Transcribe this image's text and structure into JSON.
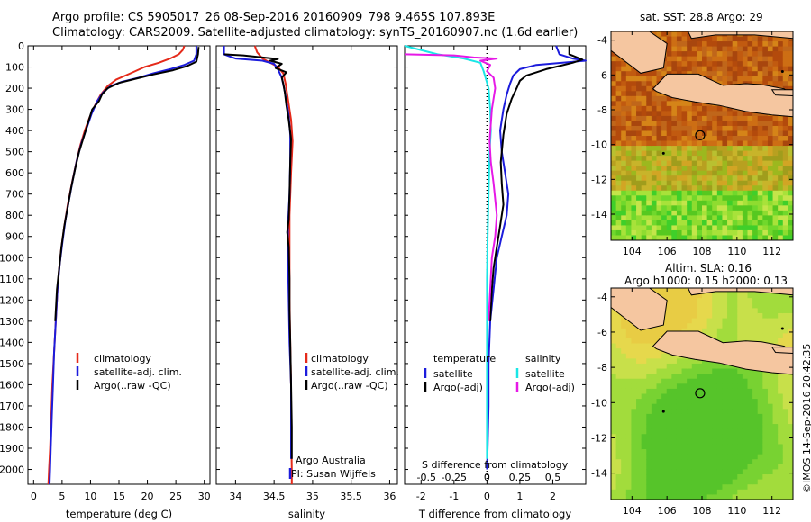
{
  "title": {
    "line1": "Argo profile: CS 5905017_26 08-Sep-2016 20160909_798 9.465S 107.893E",
    "line2": "Climatology: CARS2009. Satellite-adjusted climatology: synTS_20160907.nc (1.6d earlier)"
  },
  "colors": {
    "climatology": "#e52a1a",
    "satellite": "#1c1cdc",
    "argo": "#000000",
    "cyan": "#19e6e6",
    "magenta": "#e619e6",
    "land": "#f5c6a0",
    "frame": "#000000"
  },
  "chart_data": [
    {
      "id": "temperature",
      "type": "line",
      "xlabel": "temperature (deg C)",
      "ylabel": "",
      "xlim": [
        -1,
        31
      ],
      "ylim": [
        2070,
        0
      ],
      "xticks": [
        0,
        5,
        10,
        15,
        20,
        25,
        30
      ],
      "yticks": [
        0,
        100,
        200,
        300,
        400,
        500,
        600,
        700,
        800,
        900,
        1000,
        1100,
        1200,
        1300,
        1400,
        1500,
        1600,
        1700,
        1800,
        1900,
        2000
      ],
      "legend": [
        "climatology",
        "satellite-adj. clim.",
        "Argo(..raw -QC)"
      ],
      "series": [
        {
          "name": "climatology",
          "color": "#e52a1a",
          "points": [
            [
              26.5,
              0
            ],
            [
              26.2,
              20
            ],
            [
              25.5,
              40
            ],
            [
              24.0,
              60
            ],
            [
              22.0,
              80
            ],
            [
              19.5,
              100
            ],
            [
              17.0,
              130
            ],
            [
              14.5,
              160
            ],
            [
              13.0,
              190
            ],
            [
              11.8,
              230
            ],
            [
              10.8,
              280
            ],
            [
              9.8,
              340
            ],
            [
              9.0,
              400
            ],
            [
              8.2,
              470
            ],
            [
              7.5,
              550
            ],
            [
              6.8,
              640
            ],
            [
              6.0,
              750
            ],
            [
              5.4,
              850
            ],
            [
              4.9,
              950
            ],
            [
              4.5,
              1050
            ],
            [
              4.2,
              1150
            ],
            [
              3.9,
              1300
            ],
            [
              3.6,
              1450
            ],
            [
              3.3,
              1600
            ],
            [
              3.1,
              1750
            ],
            [
              2.9,
              1900
            ],
            [
              2.7,
              2000
            ],
            [
              2.6,
              2070
            ]
          ]
        },
        {
          "name": "satellite-adj. clim.",
          "color": "#1c1cdc",
          "points": [
            [
              28.6,
              0
            ],
            [
              28.6,
              40
            ],
            [
              28.2,
              70
            ],
            [
              26.5,
              90
            ],
            [
              24.0,
              110
            ],
            [
              21.0,
              130
            ],
            [
              18.5,
              150
            ],
            [
              15.5,
              170
            ],
            [
              13.5,
              190
            ],
            [
              12.2,
              220
            ],
            [
              11.2,
              260
            ],
            [
              10.2,
              320
            ],
            [
              9.3,
              390
            ],
            [
              8.4,
              460
            ],
            [
              7.6,
              540
            ],
            [
              6.9,
              630
            ],
            [
              6.2,
              730
            ],
            [
              5.6,
              820
            ],
            [
              5.1,
              920
            ],
            [
              4.6,
              1030
            ],
            [
              4.2,
              1150
            ],
            [
              3.9,
              1300
            ],
            [
              3.6,
              1450
            ],
            [
              3.4,
              1600
            ],
            [
              3.2,
              1750
            ],
            [
              3.0,
              1900
            ],
            [
              2.9,
              2000
            ],
            [
              2.8,
              2070
            ]
          ]
        },
        {
          "name": "Argo(..raw -QC)",
          "color": "#000000",
          "points": [
            [
              29.0,
              5
            ],
            [
              28.9,
              40
            ],
            [
              28.6,
              75
            ],
            [
              27.0,
              95
            ],
            [
              24.5,
              115
            ],
            [
              21.0,
              135
            ],
            [
              18.0,
              155
            ],
            [
              15.0,
              175
            ],
            [
              13.0,
              200
            ],
            [
              12.0,
              230
            ],
            [
              11.5,
              260
            ],
            [
              10.3,
              300
            ],
            [
              9.6,
              360
            ],
            [
              8.8,
              430
            ],
            [
              8.0,
              500
            ],
            [
              7.3,
              580
            ],
            [
              6.6,
              670
            ],
            [
              6.0,
              760
            ],
            [
              5.4,
              850
            ],
            [
              4.9,
              950
            ],
            [
              4.5,
              1050
            ],
            [
              4.1,
              1150
            ],
            [
              3.8,
              1300
            ]
          ]
        }
      ]
    },
    {
      "id": "salinity",
      "type": "line",
      "xlabel": "salinity",
      "ylabel": "",
      "xlim": [
        33.75,
        36.1
      ],
      "ylim": [
        2070,
        0
      ],
      "xticks": [
        34,
        34.5,
        35,
        35.5,
        36
      ],
      "xticklabels": [
        "34",
        "34.5",
        "35",
        "35.5",
        "36"
      ],
      "legend": [
        "climatology",
        "satellite-adj. clim.",
        "Argo(..raw -QC)"
      ],
      "series": [
        {
          "name": "climatology",
          "color": "#e52a1a",
          "points": [
            [
              34.25,
              0
            ],
            [
              34.28,
              30
            ],
            [
              34.35,
              60
            ],
            [
              34.45,
              80
            ],
            [
              34.55,
              100
            ],
            [
              34.62,
              130
            ],
            [
              34.65,
              180
            ],
            [
              34.68,
              250
            ],
            [
              34.72,
              350
            ],
            [
              34.74,
              450
            ],
            [
              34.72,
              600
            ],
            [
              34.7,
              800
            ],
            [
              34.7,
              1000
            ],
            [
              34.7,
              1200
            ],
            [
              34.71,
              1400
            ],
            [
              34.72,
              1600
            ],
            [
              34.72,
              1800
            ],
            [
              34.73,
              2000
            ],
            [
              34.73,
              2070
            ]
          ]
        },
        {
          "name": "satellite-adj. clim.",
          "color": "#1c1cdc",
          "points": [
            [
              33.85,
              0
            ],
            [
              33.85,
              40
            ],
            [
              34.0,
              60
            ],
            [
              34.35,
              70
            ],
            [
              34.5,
              85
            ],
            [
              34.55,
              110
            ],
            [
              34.6,
              150
            ],
            [
              34.63,
              200
            ],
            [
              34.66,
              260
            ],
            [
              34.69,
              330
            ],
            [
              34.71,
              420
            ],
            [
              34.71,
              550
            ],
            [
              34.7,
              700
            ],
            [
              34.68,
              850
            ],
            [
              34.68,
              1000
            ],
            [
              34.69,
              1200
            ],
            [
              34.7,
              1400
            ],
            [
              34.72,
              1600
            ],
            [
              34.72,
              1800
            ],
            [
              34.72,
              1950
            ]
          ]
        },
        {
          "name": "Argo(..raw -QC)",
          "color": "#000000",
          "points": [
            [
              33.85,
              40
            ],
            [
              34.1,
              45
            ],
            [
              34.35,
              55
            ],
            [
              34.55,
              62
            ],
            [
              34.45,
              70
            ],
            [
              34.6,
              85
            ],
            [
              34.52,
              105
            ],
            [
              34.66,
              125
            ],
            [
              34.6,
              150
            ],
            [
              34.62,
              180
            ],
            [
              34.64,
              220
            ],
            [
              34.66,
              280
            ],
            [
              34.69,
              350
            ],
            [
              34.72,
              440
            ],
            [
              34.71,
              550
            ],
            [
              34.7,
              700
            ],
            [
              34.69,
              820
            ],
            [
              34.67,
              880
            ],
            [
              34.69,
              950
            ],
            [
              34.7,
              1100
            ],
            [
              34.7,
              1250
            ],
            [
              34.71,
              1400
            ],
            [
              34.72,
              1600
            ],
            [
              34.73,
              1800
            ],
            [
              34.73,
              1950
            ]
          ]
        }
      ],
      "annotations": [
        "Argo Australia",
        "PI: Susan Wijffels"
      ]
    },
    {
      "id": "difference",
      "type": "line",
      "xlabel": "T difference from climatology",
      "xlabel_top": "S difference from climatology",
      "xlim": [
        -2.5,
        3.0
      ],
      "ylim": [
        2070,
        0
      ],
      "xticks": [
        -2,
        -1,
        0,
        1,
        2
      ],
      "xticks_top": [
        "-0.5",
        "-0.25",
        "0",
        "0.25",
        "0.5"
      ],
      "legend_left_title": "temperature",
      "legend_right_title": "salinity",
      "legend": [
        "satellite",
        "Argo(-adj)",
        "satellite",
        "Argo(-adj)"
      ],
      "series": [
        {
          "name": "T satellite",
          "color": "#1c1cdc",
          "points": [
            [
              2.1,
              0
            ],
            [
              2.2,
              40
            ],
            [
              2.6,
              60
            ],
            [
              3.0,
              70
            ],
            [
              1.5,
              90
            ],
            [
              1.0,
              110
            ],
            [
              0.8,
              140
            ],
            [
              0.7,
              180
            ],
            [
              0.6,
              230
            ],
            [
              0.5,
              300
            ],
            [
              0.4,
              400
            ],
            [
              0.45,
              500
            ],
            [
              0.55,
              600
            ],
            [
              0.65,
              700
            ],
            [
              0.6,
              800
            ],
            [
              0.45,
              900
            ],
            [
              0.3,
              1000
            ],
            [
              0.2,
              1150
            ],
            [
              0.1,
              1300
            ],
            [
              0.05,
              1500
            ],
            [
              0.05,
              1700
            ],
            [
              0.02,
              1900
            ],
            [
              0.0,
              2000
            ]
          ]
        },
        {
          "name": "T Argo(-adj)",
          "color": "#000000",
          "points": [
            [
              2.5,
              0
            ],
            [
              2.5,
              40
            ],
            [
              2.9,
              65
            ],
            [
              2.6,
              80
            ],
            [
              2.2,
              95
            ],
            [
              1.8,
              110
            ],
            [
              1.5,
              125
            ],
            [
              1.2,
              140
            ],
            [
              1.0,
              165
            ],
            [
              0.9,
              200
            ],
            [
              0.75,
              250
            ],
            [
              0.6,
              320
            ],
            [
              0.5,
              420
            ],
            [
              0.42,
              550
            ],
            [
              0.45,
              650
            ],
            [
              0.5,
              750
            ],
            [
              0.4,
              850
            ],
            [
              0.3,
              950
            ],
            [
              0.2,
              1050
            ],
            [
              0.15,
              1150
            ],
            [
              0.1,
              1300
            ]
          ]
        },
        {
          "name": "S satellite",
          "color": "#19e6e6",
          "points": [
            [
              -2.5,
              0
            ],
            [
              -1.5,
              40
            ],
            [
              -0.7,
              60
            ],
            [
              -0.2,
              80
            ],
            [
              -0.1,
              120
            ],
            [
              0.05,
              200
            ],
            [
              0.1,
              300
            ],
            [
              0.12,
              400
            ],
            [
              0.08,
              500
            ],
            [
              0.05,
              700
            ],
            [
              0.02,
              900
            ],
            [
              0.0,
              1100
            ],
            [
              0.0,
              1300
            ],
            [
              0.0,
              1500
            ],
            [
              0.0,
              1700
            ],
            [
              0.0,
              1900
            ],
            [
              0.0,
              1950
            ]
          ]
        },
        {
          "name": "S Argo(-adj)",
          "color": "#e619e6",
          "points": [
            [
              -2.5,
              40
            ],
            [
              -1.0,
              45
            ],
            [
              -0.4,
              55
            ],
            [
              0.3,
              60
            ],
            [
              -0.2,
              70
            ],
            [
              0.1,
              90
            ],
            [
              0.0,
              120
            ],
            [
              0.2,
              150
            ],
            [
              0.25,
              200
            ],
            [
              0.15,
              300
            ],
            [
              0.08,
              450
            ],
            [
              0.12,
              550
            ],
            [
              0.2,
              650
            ],
            [
              0.3,
              800
            ],
            [
              0.25,
              900
            ],
            [
              0.15,
              1000
            ],
            [
              0.1,
              1150
            ],
            [
              0.05,
              1300
            ]
          ]
        }
      ]
    },
    {
      "id": "sst-map",
      "type": "heatmap",
      "title": "sat. SST: 28.8 Argo: 29",
      "xlim": [
        102.8,
        113.2
      ],
      "ylim": [
        -15.5,
        -3.5
      ],
      "xticks": [
        104,
        106,
        108,
        110,
        112
      ],
      "yticks": [
        -4,
        -6,
        -8,
        -10,
        -12,
        -14
      ],
      "marker": {
        "lon": 107.893,
        "lat": -9.465
      }
    },
    {
      "id": "sla-map",
      "type": "heatmap",
      "title_line1": "Altim. SLA: 0.16",
      "title_line2": "Argo h1000: 0.15 h2000: 0.13",
      "xlim": [
        102.8,
        113.2
      ],
      "ylim": [
        -15.5,
        -3.5
      ],
      "xticks": [
        104,
        106,
        108,
        110,
        112
      ],
      "yticks": [
        -4,
        -6,
        -8,
        -10,
        -12,
        -14
      ],
      "marker": {
        "lon": 107.893,
        "lat": -9.465
      }
    }
  ],
  "credit": "©IMOS 14-Sep-2016 20:42:35"
}
